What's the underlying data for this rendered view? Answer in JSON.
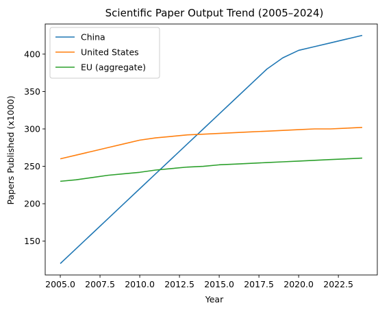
{
  "chart_data": {
    "type": "line",
    "title": "Scientific Paper Output Trend (2005–2024)",
    "xlabel": "Year",
    "ylabel": "Papers Published (x1000)",
    "xlim": [
      2004.05,
      2024.95
    ],
    "ylim": [
      104.75,
      440.25
    ],
    "x_ticks": [
      2005.0,
      2007.5,
      2010.0,
      2012.5,
      2015.0,
      2017.5,
      2020.0,
      2022.5
    ],
    "x_tick_labels": [
      "2005.0",
      "2007.5",
      "2010.0",
      "2012.5",
      "2015.0",
      "2017.5",
      "2020.0",
      "2022.5"
    ],
    "y_ticks": [
      150,
      200,
      250,
      300,
      350,
      400
    ],
    "y_tick_labels": [
      "150",
      "200",
      "250",
      "300",
      "350",
      "400"
    ],
    "grid": false,
    "legend_position": "top-left",
    "x": [
      2005,
      2006,
      2007,
      2008,
      2009,
      2010,
      2011,
      2012,
      2013,
      2014,
      2015,
      2016,
      2017,
      2018,
      2019,
      2020,
      2021,
      2022,
      2023,
      2024
    ],
    "series": [
      {
        "name": "China",
        "color": "#1f77b4",
        "values": [
          120,
          140,
          160,
          180,
          200,
          220,
          240,
          260,
          280,
          300,
          320,
          340,
          360,
          380,
          395,
          405,
          410,
          415,
          420,
          425
        ]
      },
      {
        "name": "United States",
        "color": "#ff7f0e",
        "values": [
          260,
          265,
          270,
          275,
          280,
          285,
          288,
          290,
          292,
          293,
          294,
          295,
          296,
          297,
          298,
          299,
          300,
          300,
          301,
          302
        ]
      },
      {
        "name": "EU (aggregate)",
        "color": "#2ca02c",
        "values": [
          230,
          232,
          235,
          238,
          240,
          242,
          245,
          247,
          249,
          250,
          252,
          253,
          254,
          255,
          256,
          257,
          258,
          259,
          260,
          261
        ]
      }
    ]
  }
}
